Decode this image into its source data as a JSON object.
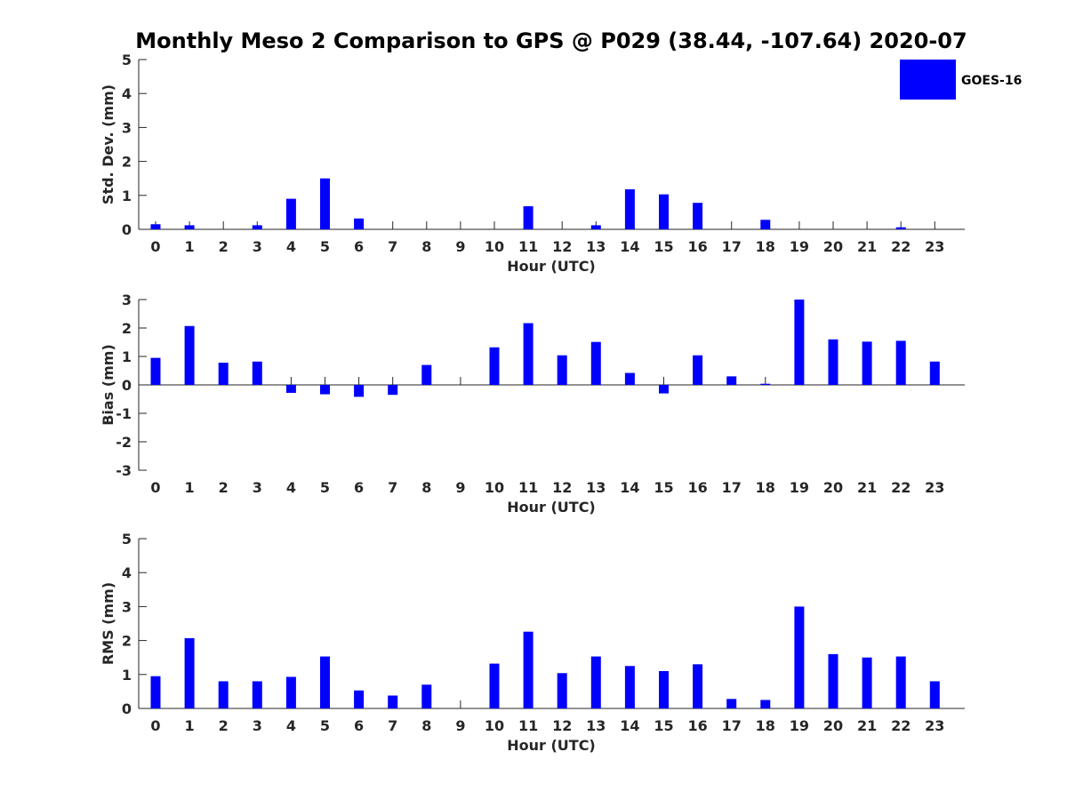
{
  "title": "Monthly Meso 2 Comparison to GPS @ P029 (38.44, -107.64) 2020-07",
  "colors": {
    "bar": "#0000ff",
    "axis": "#262626"
  },
  "legend": {
    "label": "GOES-16",
    "placement": "top-right"
  },
  "chart_data": [
    {
      "type": "bar",
      "title": "Monthly Meso 2 Comparison to GPS @ P029 (38.44, -107.64) 2020-07",
      "xlabel": "Hour (UTC)",
      "ylabel": "Std. Dev. (mm)",
      "ylim": [
        0,
        5
      ],
      "yticks": [
        "0",
        "1",
        "2",
        "3",
        "4",
        "5"
      ],
      "categories": [
        "0",
        "1",
        "2",
        "3",
        "4",
        "5",
        "6",
        "7",
        "8",
        "9",
        "10",
        "11",
        "12",
        "13",
        "14",
        "15",
        "16",
        "17",
        "18",
        "19",
        "20",
        "21",
        "22",
        "23"
      ],
      "series": [
        {
          "name": "GOES-16",
          "values": [
            0.15,
            0.12,
            null,
            0.12,
            0.9,
            1.5,
            0.32,
            null,
            null,
            null,
            null,
            0.68,
            null,
            0.12,
            1.18,
            1.03,
            0.78,
            null,
            0.28,
            null,
            null,
            null,
            0.06,
            null
          ]
        }
      ]
    },
    {
      "type": "bar",
      "xlabel": "Hour (UTC)",
      "ylabel": "Bias (mm)",
      "ylim": [
        -3,
        3
      ],
      "yticks": [
        "-3",
        "-2",
        "-1",
        "0",
        "1",
        "2",
        "3"
      ],
      "categories": [
        "0",
        "1",
        "2",
        "3",
        "4",
        "5",
        "6",
        "7",
        "8",
        "9",
        "10",
        "11",
        "12",
        "13",
        "14",
        "15",
        "16",
        "17",
        "18",
        "19",
        "20",
        "21",
        "22",
        "23"
      ],
      "series": [
        {
          "name": "GOES-16",
          "values": [
            0.95,
            2.07,
            0.78,
            0.82,
            -0.28,
            -0.33,
            -0.42,
            -0.35,
            0.7,
            null,
            1.32,
            2.17,
            1.04,
            1.51,
            0.42,
            -0.3,
            1.04,
            0.3,
            0.04,
            3.0,
            1.6,
            1.52,
            1.55,
            0.82
          ]
        }
      ]
    },
    {
      "type": "bar",
      "xlabel": "Hour (UTC)",
      "ylabel": "RMS (mm)",
      "ylim": [
        0,
        5
      ],
      "yticks": [
        "0",
        "1",
        "2",
        "3",
        "4",
        "5"
      ],
      "categories": [
        "0",
        "1",
        "2",
        "3",
        "4",
        "5",
        "6",
        "7",
        "8",
        "9",
        "10",
        "11",
        "12",
        "13",
        "14",
        "15",
        "16",
        "17",
        "18",
        "19",
        "20",
        "21",
        "22",
        "23"
      ],
      "series": [
        {
          "name": "GOES-16",
          "values": [
            0.95,
            2.07,
            0.8,
            0.8,
            0.93,
            1.53,
            0.53,
            0.38,
            0.7,
            null,
            1.32,
            2.26,
            1.04,
            1.53,
            1.25,
            1.1,
            1.3,
            0.28,
            0.25,
            3.0,
            1.6,
            1.5,
            1.53,
            0.8
          ]
        }
      ]
    }
  ]
}
